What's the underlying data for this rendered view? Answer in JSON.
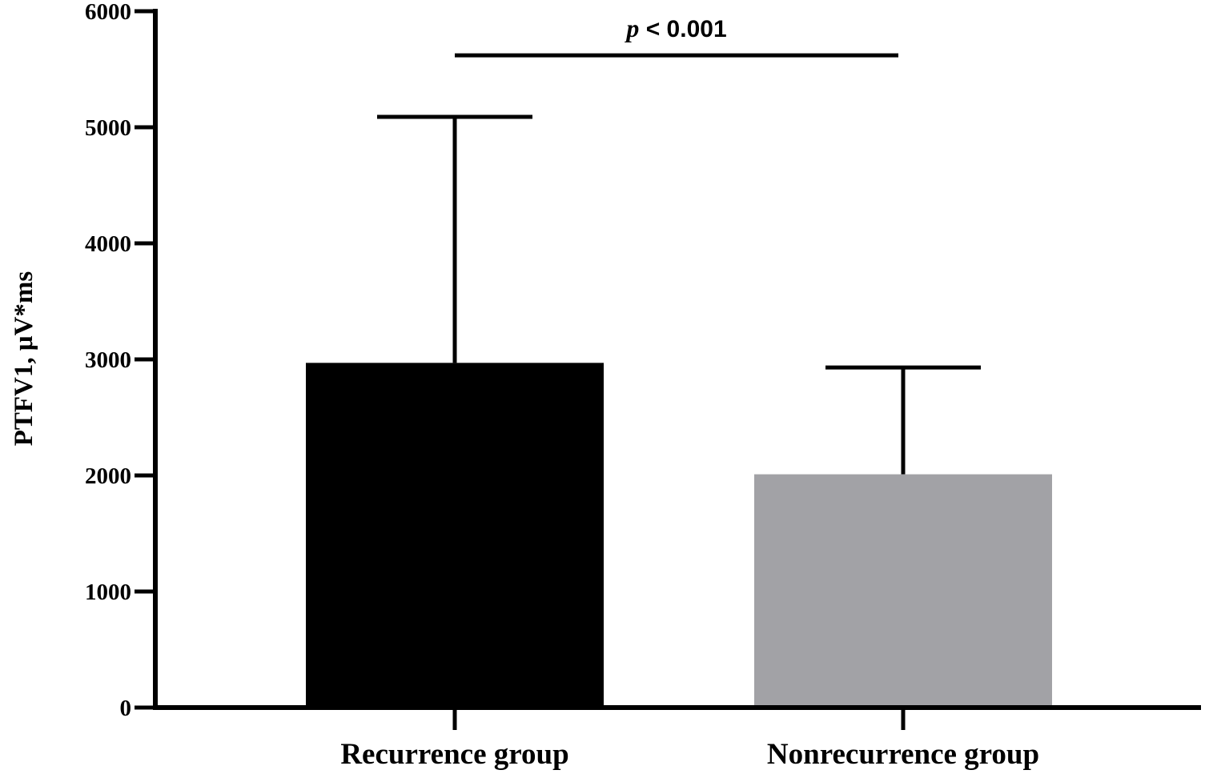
{
  "chart_data": {
    "type": "bar",
    "categories": [
      "Recurrence group",
      "Nonrecurrence group"
    ],
    "values": [
      2970,
      2010
    ],
    "error_upper": [
      5090,
      2930
    ],
    "colors": [
      "#000000",
      "#a2a2a6"
    ],
    "ylabel": "PTFV1, μV*ms",
    "ylim": [
      0,
      6000
    ],
    "yticks": [
      0,
      1000,
      2000,
      3000,
      4000,
      5000,
      6000
    ],
    "ytick_labels": [
      "0",
      "1000",
      "2000",
      "3000",
      "4000",
      "5000",
      "6000"
    ],
    "grid": false,
    "significance": {
      "p_symbol": "p",
      "rest": " < 0.001",
      "between": [
        0,
        1
      ],
      "level": 5620
    }
  }
}
